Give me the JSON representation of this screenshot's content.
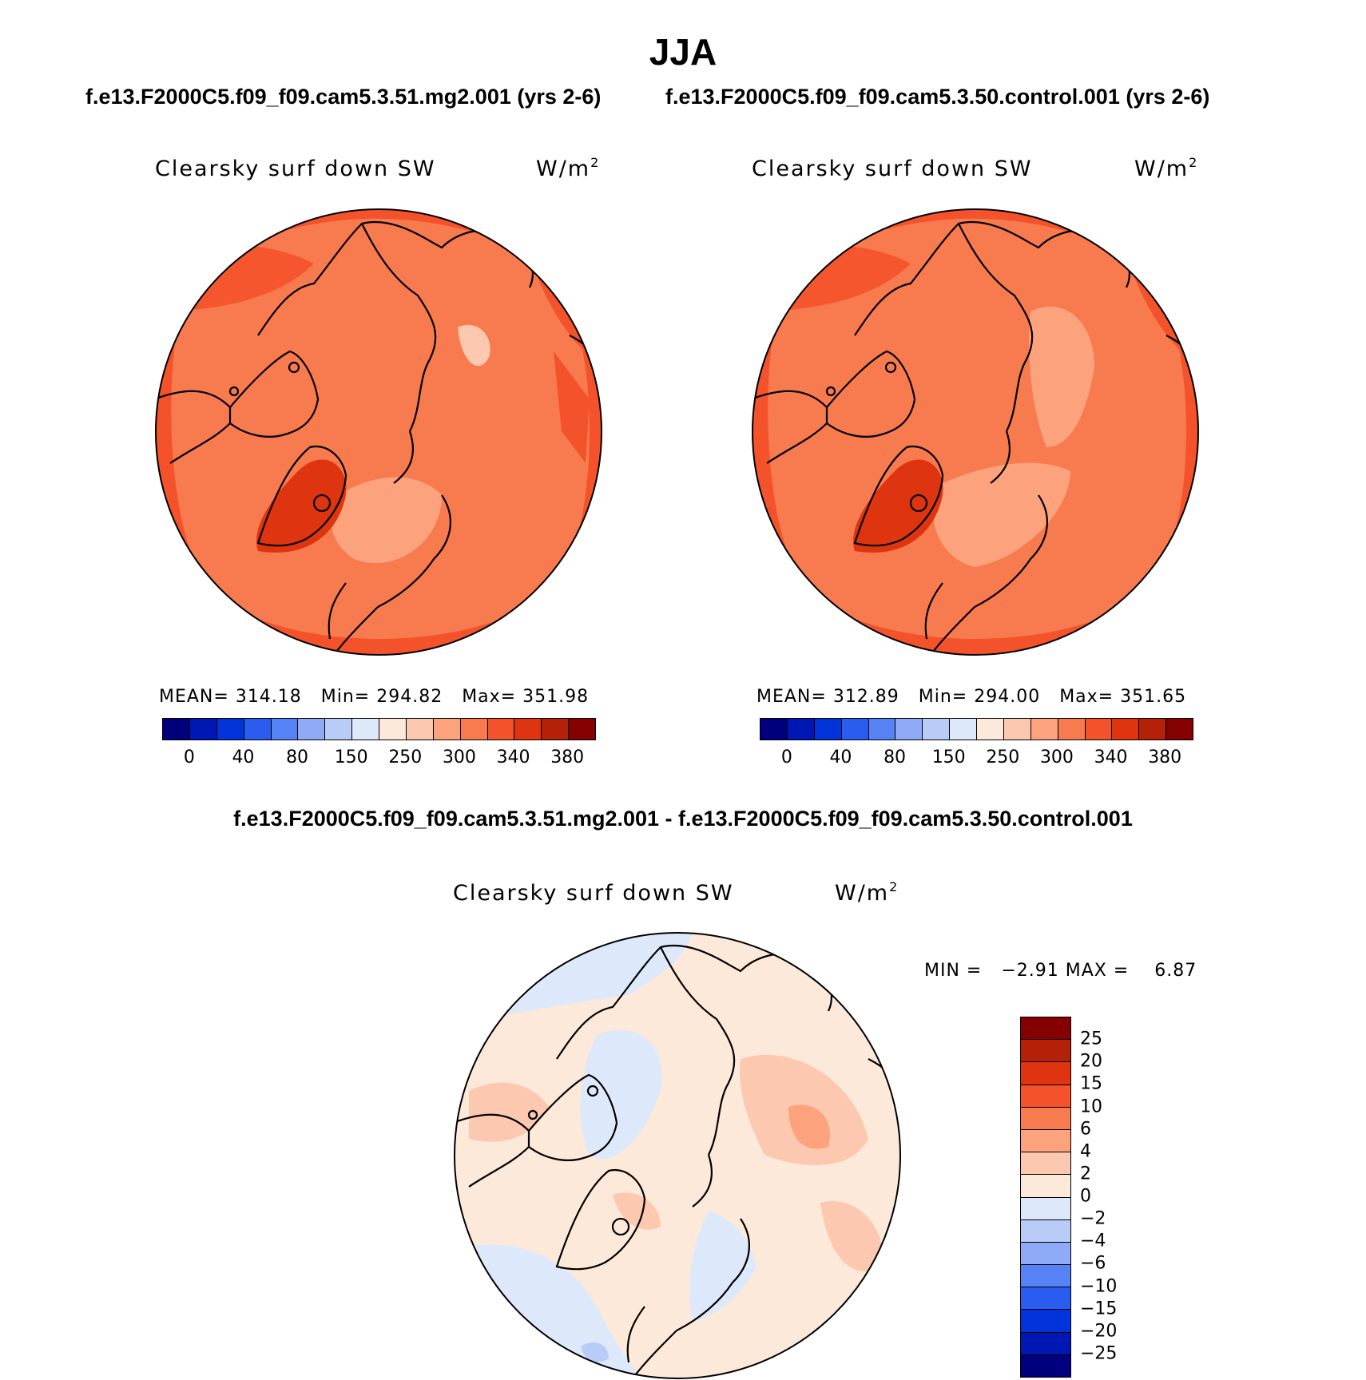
{
  "title": "JJA",
  "panels": [
    {
      "case_title": "f.e13.F2000C5.f09_f09.cam5.3.51.mg2.001 (yrs 2-6)",
      "variable": "Clearsky surf down SW",
      "units_base": "W/m",
      "units_exp": "2",
      "stats": "MEAN= 314.18   Min= 294.82   Max= 351.98"
    },
    {
      "case_title": "f.e13.F2000C5.f09_f09.cam5.3.50.control.001 (yrs 2-6)",
      "variable": "Clearsky surf down SW",
      "units_base": "W/m",
      "units_exp": "2",
      "stats": "MEAN= 312.89   Min= 294.00   Max= 351.65"
    }
  ],
  "main_colorbar": {
    "colors": [
      "#00007f",
      "#0018b3",
      "#0033d9",
      "#2a5cf0",
      "#5582f5",
      "#8faaf7",
      "#b8ccf7",
      "#dde9fb",
      "#fde9d9",
      "#fcc8b0",
      "#fca37e",
      "#f87a4f",
      "#f4522a",
      "#de3510",
      "#b52008",
      "#850000"
    ],
    "labels": [
      "0",
      "40",
      "80",
      "150",
      "250",
      "300",
      "340",
      "380"
    ]
  },
  "difference": {
    "title": "f.e13.F2000C5.f09_f09.cam5.3.51.mg2.001 - f.e13.F2000C5.f09_f09.cam5.3.50.control.001",
    "variable": "Clearsky surf down SW",
    "units_base": "W/m",
    "units_exp": "2",
    "min_max": "MIN =   −2.91 MAX =    6.87",
    "colorbar": {
      "colors": [
        "#00007f",
        "#0018b3",
        "#0033d9",
        "#2a5cf0",
        "#5582f5",
        "#8faaf7",
        "#b8ccf7",
        "#dde9fb",
        "#fde9d9",
        "#fcc8b0",
        "#fca37e",
        "#f87a4f",
        "#f4522a",
        "#de3510",
        "#b52008",
        "#850000"
      ],
      "labels": [
        "−25",
        "−20",
        "−15",
        "−10",
        "−6",
        "−4",
        "−2",
        "0",
        "2",
        "4",
        "6",
        "10",
        "15",
        "20",
        "25"
      ]
    }
  }
}
